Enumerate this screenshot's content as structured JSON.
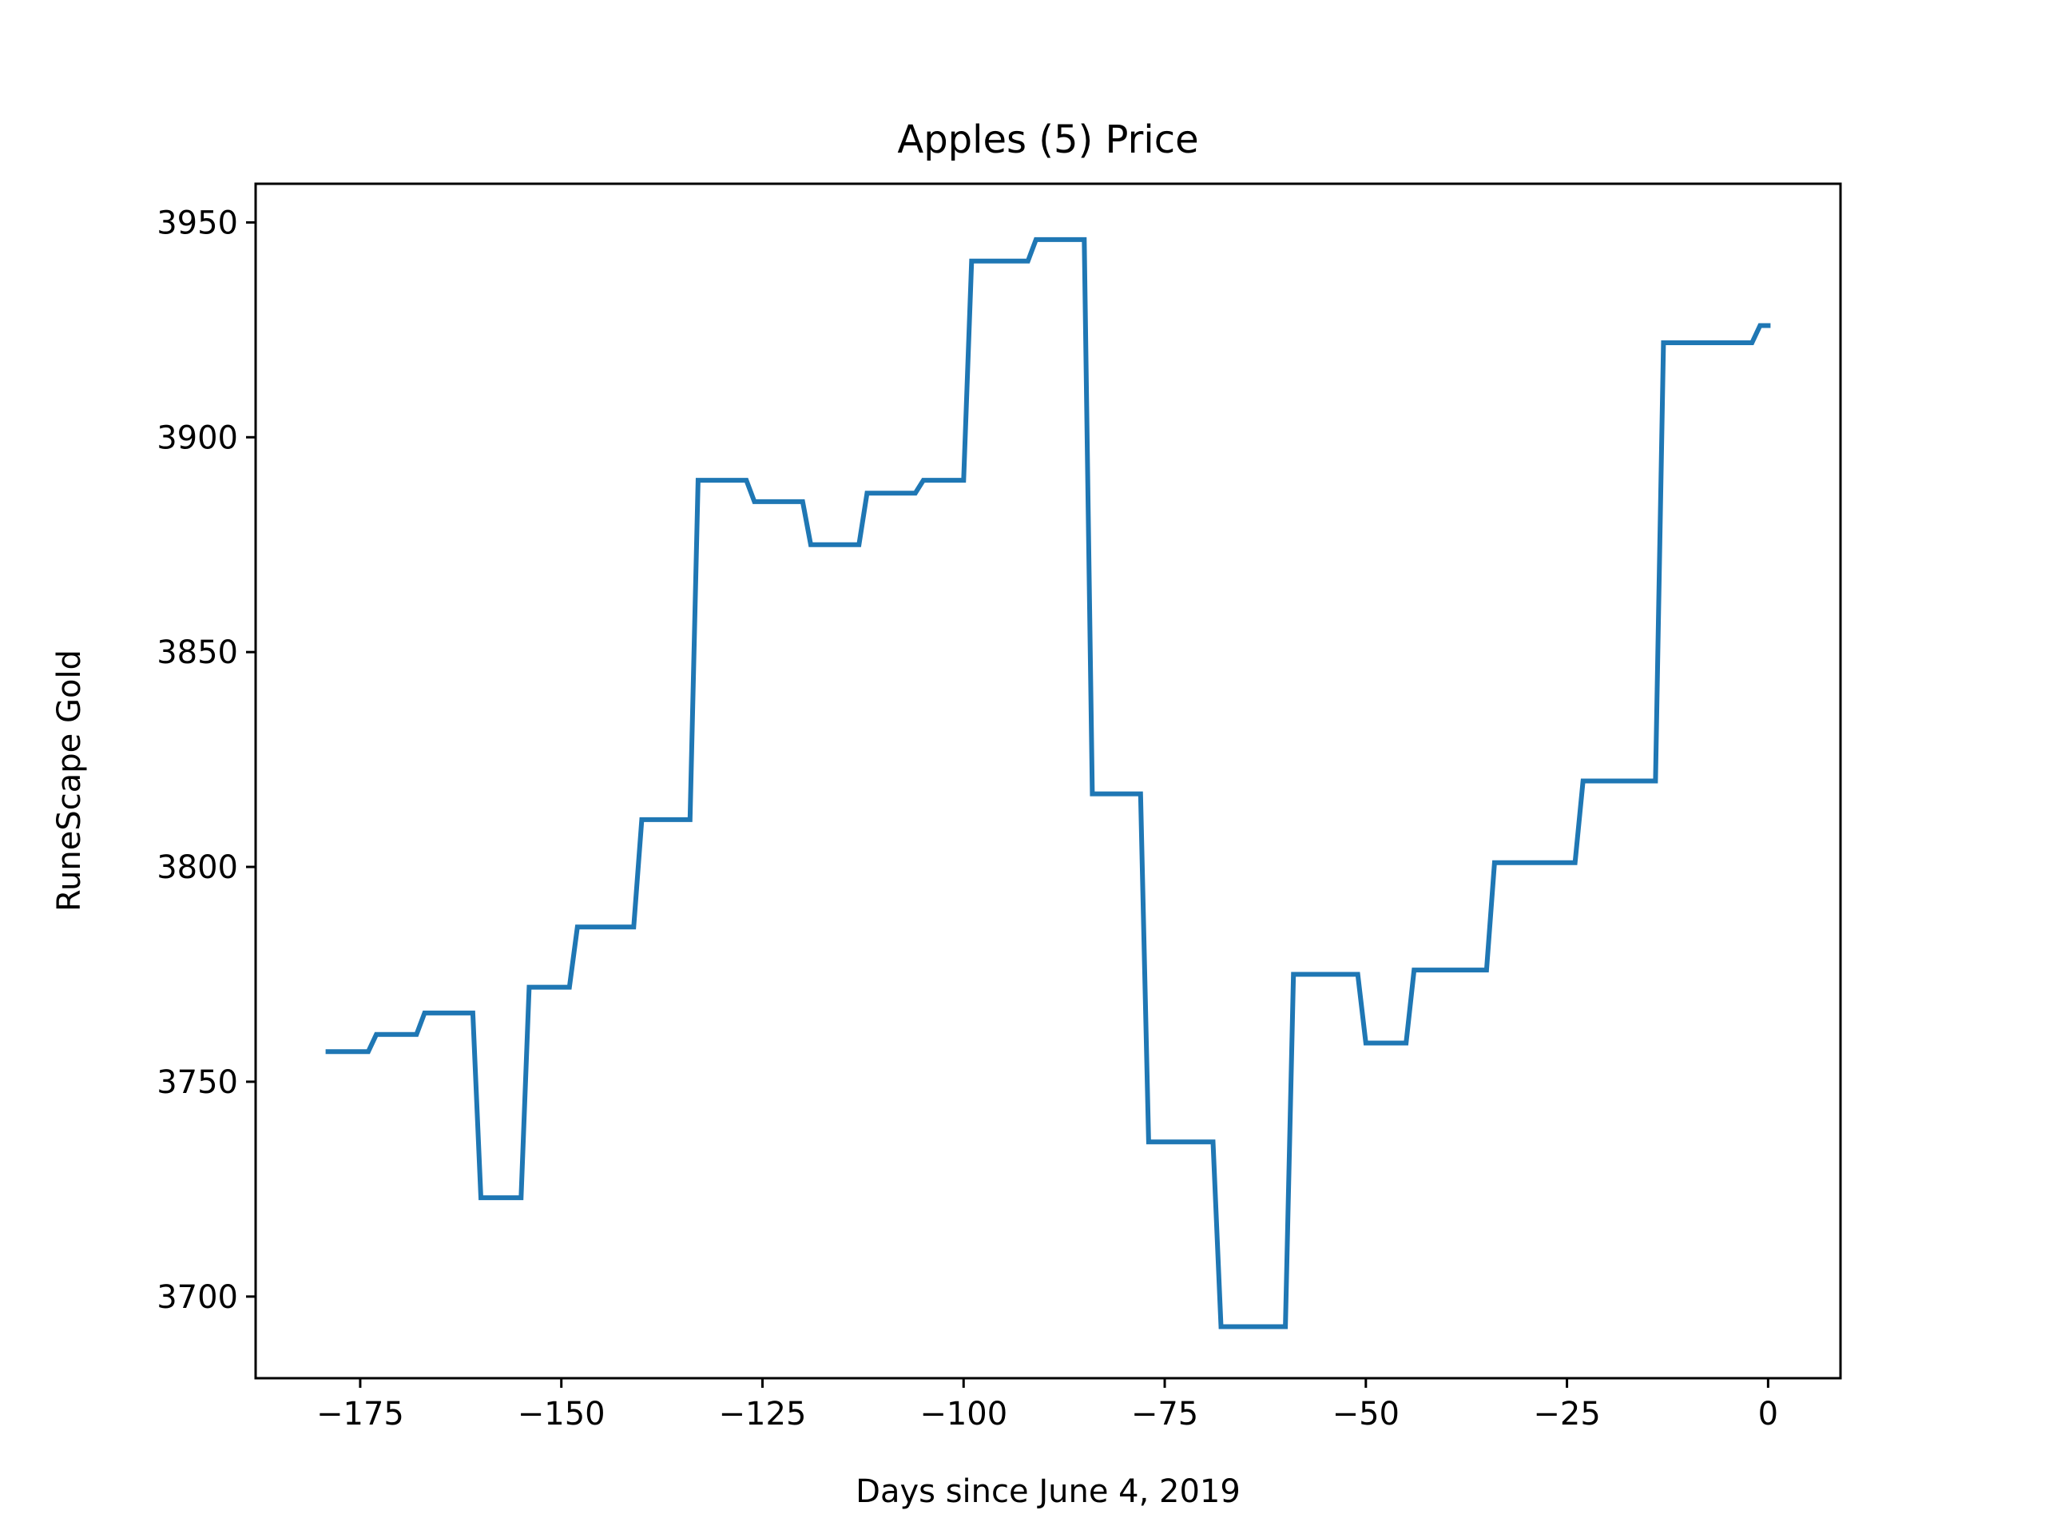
{
  "chart_data": {
    "type": "line",
    "title": "Apples (5) Price",
    "xlabel": "Days since June 4, 2019",
    "ylabel": "RuneScape Gold",
    "xlim": [
      -188,
      9
    ],
    "ylim": [
      3681,
      3959
    ],
    "xticks": [
      -175,
      -150,
      -125,
      -100,
      -75,
      -50,
      -25,
      0
    ],
    "xtick_labels": [
      "−175",
      "−150",
      "−125",
      "−100",
      "−75",
      "−50",
      "−25",
      "0"
    ],
    "yticks": [
      3700,
      3750,
      3800,
      3850,
      3900,
      3950
    ],
    "ytick_labels": [
      "3700",
      "3750",
      "3800",
      "3850",
      "3900",
      "3950"
    ],
    "grid": false,
    "series": [
      {
        "color": "#1f77b4",
        "x": [
          -179,
          -174,
          -173,
          -168,
          -167,
          -161,
          -160,
          -155,
          -154,
          -149,
          -148,
          -141,
          -140,
          -134,
          -133,
          -127,
          -126,
          -120,
          -119,
          -113,
          -112,
          -106,
          -105,
          -100,
          -99,
          -92,
          -91,
          -85,
          -84,
          -78,
          -77,
          -69,
          -68,
          -60,
          -59,
          -51,
          -50,
          -45,
          -44,
          -35,
          -34,
          -24,
          -23,
          -14,
          -13,
          -2,
          -1,
          0
        ],
        "y": [
          3757,
          3757,
          3761,
          3761,
          3766,
          3766,
          3723,
          3723,
          3772,
          3772,
          3786,
          3786,
          3811,
          3811,
          3890,
          3890,
          3885,
          3885,
          3875,
          3875,
          3887,
          3887,
          3890,
          3890,
          3941,
          3941,
          3946,
          3946,
          3817,
          3817,
          3736,
          3736,
          3693,
          3693,
          3775,
          3775,
          3759,
          3759,
          3776,
          3776,
          3801,
          3801,
          3820,
          3820,
          3922,
          3922,
          3926,
          3926
        ]
      }
    ]
  }
}
